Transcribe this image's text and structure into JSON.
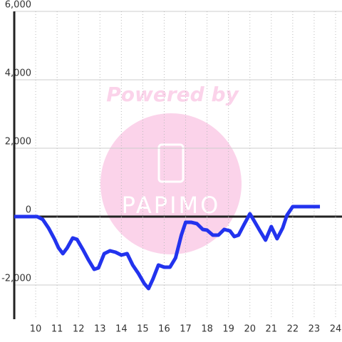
{
  "chart_data": {
    "type": "line",
    "annotations": [
      "Powered by",
      "PAPIMO"
    ],
    "xlim": [
      9,
      24.3
    ],
    "xticks": [
      10,
      11,
      12,
      13,
      14,
      15,
      16,
      17,
      18,
      19,
      20,
      21,
      22,
      23,
      24
    ],
    "ylim": [
      -3000,
      6000
    ],
    "yticks": [
      {
        "value": -2000,
        "label": "-2,000"
      },
      0,
      {
        "value": 2000,
        "label": "2,000"
      },
      {
        "value": 4000,
        "label": "4,000"
      },
      {
        "value": 6000,
        "label": "6,000"
      }
    ],
    "grid": true,
    "series": [
      {
        "color": "#2233ee",
        "x": [
          9.0,
          10.07,
          10.33,
          10.6,
          10.87,
          11.07,
          11.27,
          11.47,
          11.73,
          11.93,
          12.2,
          12.47,
          12.73,
          12.93,
          13.2,
          13.47,
          13.73,
          14.0,
          14.27,
          14.53,
          14.8,
          15.07,
          15.27,
          15.47,
          15.73,
          16.0,
          16.27,
          16.53,
          16.8,
          17.0,
          17.27,
          17.53,
          17.8,
          18.0,
          18.27,
          18.53,
          18.8,
          19.07,
          19.27,
          19.47,
          19.73,
          20.0,
          20.2,
          20.47,
          20.73,
          21.0,
          21.27,
          21.53,
          21.73,
          22.0,
          23.27
        ],
        "values": [
          0,
          0,
          -83,
          -333,
          -646,
          -917,
          -1083,
          -917,
          -625,
          -667,
          -958,
          -1271,
          -1542,
          -1500,
          -1083,
          -1000,
          -1042,
          -1125,
          -1083,
          -1417,
          -1667,
          -1958,
          -2104,
          -1833,
          -1417,
          -1479,
          -1479,
          -1208,
          -542,
          -167,
          -167,
          -208,
          -375,
          -396,
          -542,
          -542,
          -375,
          -417,
          -583,
          -542,
          -229,
          83,
          -125,
          -417,
          -688,
          -292,
          -646,
          -333,
          42,
          292,
          292
        ]
      }
    ]
  }
}
